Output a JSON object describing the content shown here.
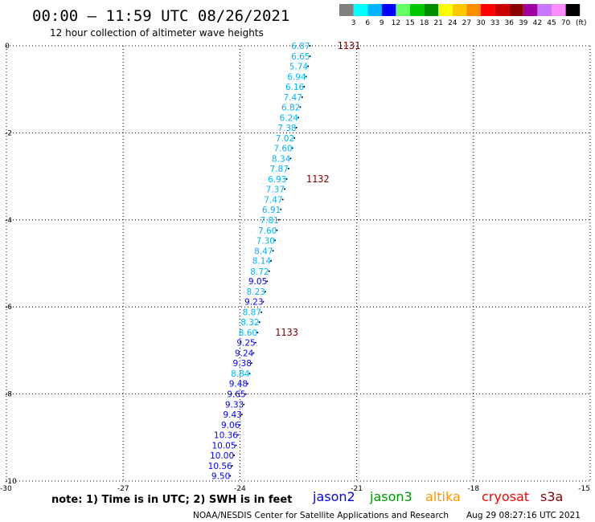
{
  "header": {
    "title": "00:00 — 11:59 UTC 08/26/2021",
    "subtitle": "12 hour collection of altimeter wave heights"
  },
  "colorbar": {
    "labels": [
      "3",
      "6",
      "9",
      "12",
      "15",
      "18",
      "21",
      "24",
      "27",
      "30",
      "33",
      "36",
      "39",
      "42",
      "45",
      "70"
    ],
    "unit": "(ft)",
    "colors": [
      "#808080",
      "#00ffff",
      "#00b4ff",
      "#0000ff",
      "#64ff64",
      "#00c800",
      "#008c00",
      "#ffff00",
      "#ffc800",
      "#ff8c00",
      "#ff0000",
      "#c80000",
      "#8c0000",
      "#a000a0",
      "#c878ff",
      "#ff8cff",
      "#000000"
    ]
  },
  "chart_data": {
    "type": "scatter",
    "xlim": [
      -30,
      -15
    ],
    "ylim": [
      -10,
      0
    ],
    "x_ticks": [
      "-30",
      "-27",
      "-24",
      "-21",
      "-18",
      "-15"
    ],
    "y_ticks": [
      "0",
      "-2",
      "-4",
      "-6",
      "-8",
      "-10"
    ],
    "grid": true,
    "points": [
      {
        "x": -22.2,
        "y": 0.0,
        "v": "6.87",
        "color": "#00b4ff"
      },
      {
        "x": -22.2,
        "y": -0.24,
        "v": "6.65",
        "color": "#00b4ff"
      },
      {
        "x": -22.25,
        "y": -0.47,
        "v": "5.74",
        "color": "#00b4ff"
      },
      {
        "x": -22.3,
        "y": -0.71,
        "v": "6.94",
        "color": "#00b4ff"
      },
      {
        "x": -22.35,
        "y": -0.94,
        "v": "6.16",
        "color": "#00b4ff"
      },
      {
        "x": -22.4,
        "y": -1.18,
        "v": "7.47",
        "color": "#00b4ff"
      },
      {
        "x": -22.45,
        "y": -1.41,
        "v": "6.82",
        "color": "#00b4ff"
      },
      {
        "x": -22.5,
        "y": -1.65,
        "v": "6.24",
        "color": "#00b4ff"
      },
      {
        "x": -22.55,
        "y": -1.88,
        "v": "7.38",
        "color": "#00b4ff"
      },
      {
        "x": -22.6,
        "y": -2.12,
        "v": "7.02",
        "color": "#00b4ff"
      },
      {
        "x": -22.65,
        "y": -2.35,
        "v": "7.60",
        "color": "#00b4ff"
      },
      {
        "x": -22.7,
        "y": -2.59,
        "v": "8.34",
        "color": "#00b4ff"
      },
      {
        "x": -22.75,
        "y": -2.82,
        "v": "7.87",
        "color": "#00b4ff"
      },
      {
        "x": -22.8,
        "y": -3.06,
        "v": "6.93",
        "color": "#00b4ff"
      },
      {
        "x": -22.85,
        "y": -3.29,
        "v": "7.37",
        "color": "#00b4ff"
      },
      {
        "x": -22.9,
        "y": -3.53,
        "v": "7.47",
        "color": "#00b4ff"
      },
      {
        "x": -22.95,
        "y": -3.76,
        "v": "6.91",
        "color": "#00b4ff"
      },
      {
        "x": -23.0,
        "y": -4.0,
        "v": "7.81",
        "color": "#00b4ff"
      },
      {
        "x": -23.05,
        "y": -4.24,
        "v": "7.60",
        "color": "#00b4ff"
      },
      {
        "x": -23.1,
        "y": -4.47,
        "v": "7.30",
        "color": "#00b4ff"
      },
      {
        "x": -23.15,
        "y": -4.71,
        "v": "8.47",
        "color": "#00b4ff"
      },
      {
        "x": -23.2,
        "y": -4.94,
        "v": "8.14",
        "color": "#00b4ff"
      },
      {
        "x": -23.25,
        "y": -5.18,
        "v": "8.72",
        "color": "#00b4ff"
      },
      {
        "x": -23.3,
        "y": -5.41,
        "v": "9.05",
        "color": "#0000ff"
      },
      {
        "x": -23.35,
        "y": -5.65,
        "v": "8.23",
        "color": "#00b4ff"
      },
      {
        "x": -23.4,
        "y": -5.88,
        "v": "9.23",
        "color": "#0000ff"
      },
      {
        "x": -23.45,
        "y": -6.12,
        "v": "8.87",
        "color": "#00b4ff"
      },
      {
        "x": -23.5,
        "y": -6.35,
        "v": "8.32",
        "color": "#00b4ff"
      },
      {
        "x": -23.55,
        "y": -6.59,
        "v": "8.60",
        "color": "#00b4ff"
      },
      {
        "x": -23.6,
        "y": -6.82,
        "v": "9.25",
        "color": "#0000ff"
      },
      {
        "x": -23.65,
        "y": -7.06,
        "v": "9.24",
        "color": "#0000ff"
      },
      {
        "x": -23.7,
        "y": -7.29,
        "v": "9.38",
        "color": "#0000ff"
      },
      {
        "x": -23.75,
        "y": -7.53,
        "v": "8.84",
        "color": "#00b4ff"
      },
      {
        "x": -23.8,
        "y": -7.76,
        "v": "9.48",
        "color": "#0000ff"
      },
      {
        "x": -23.85,
        "y": -8.0,
        "v": "9.65",
        "color": "#0000ff"
      },
      {
        "x": -23.9,
        "y": -8.24,
        "v": "9.33",
        "color": "#0000ff"
      },
      {
        "x": -23.95,
        "y": -8.47,
        "v": "9.43",
        "color": "#0000ff"
      },
      {
        "x": -24.0,
        "y": -8.71,
        "v": "9.06",
        "color": "#0000ff"
      },
      {
        "x": -24.05,
        "y": -8.94,
        "v": "10.36",
        "color": "#0000ff"
      },
      {
        "x": -24.1,
        "y": -9.18,
        "v": "10.05",
        "color": "#0000ff"
      },
      {
        "x": -24.15,
        "y": -9.41,
        "v": "10.00",
        "color": "#0000ff"
      },
      {
        "x": -24.2,
        "y": -9.65,
        "v": "10.56",
        "color": "#0000ff"
      },
      {
        "x": -24.25,
        "y": -9.88,
        "v": "9.50",
        "color": "#0000ff"
      }
    ],
    "annotations": [
      {
        "x": -21.2,
        "y": 0.0,
        "text": "1131"
      },
      {
        "x": -22.0,
        "y": -3.06,
        "text": "1132"
      },
      {
        "x": -22.8,
        "y": -6.59,
        "text": "1133"
      }
    ],
    "annotation_color": "#800000"
  },
  "footer": {
    "note": "note: 1) Time is in UTC; 2) SWH is in feet",
    "legend": [
      {
        "name": "jason2",
        "color": "#0000ff"
      },
      {
        "name": "jason3",
        "color": "#009600"
      },
      {
        "name": "altika",
        "color": "#ff9600"
      },
      {
        "name": "cryosat",
        "color": "#ff0000"
      },
      {
        "name": "s3a",
        "color": "#800000"
      }
    ],
    "credit": "NOAA/NESDIS Center for Satellite Applications and Research",
    "timestamp": "Aug 29 08:27:16 UTC 2021"
  }
}
